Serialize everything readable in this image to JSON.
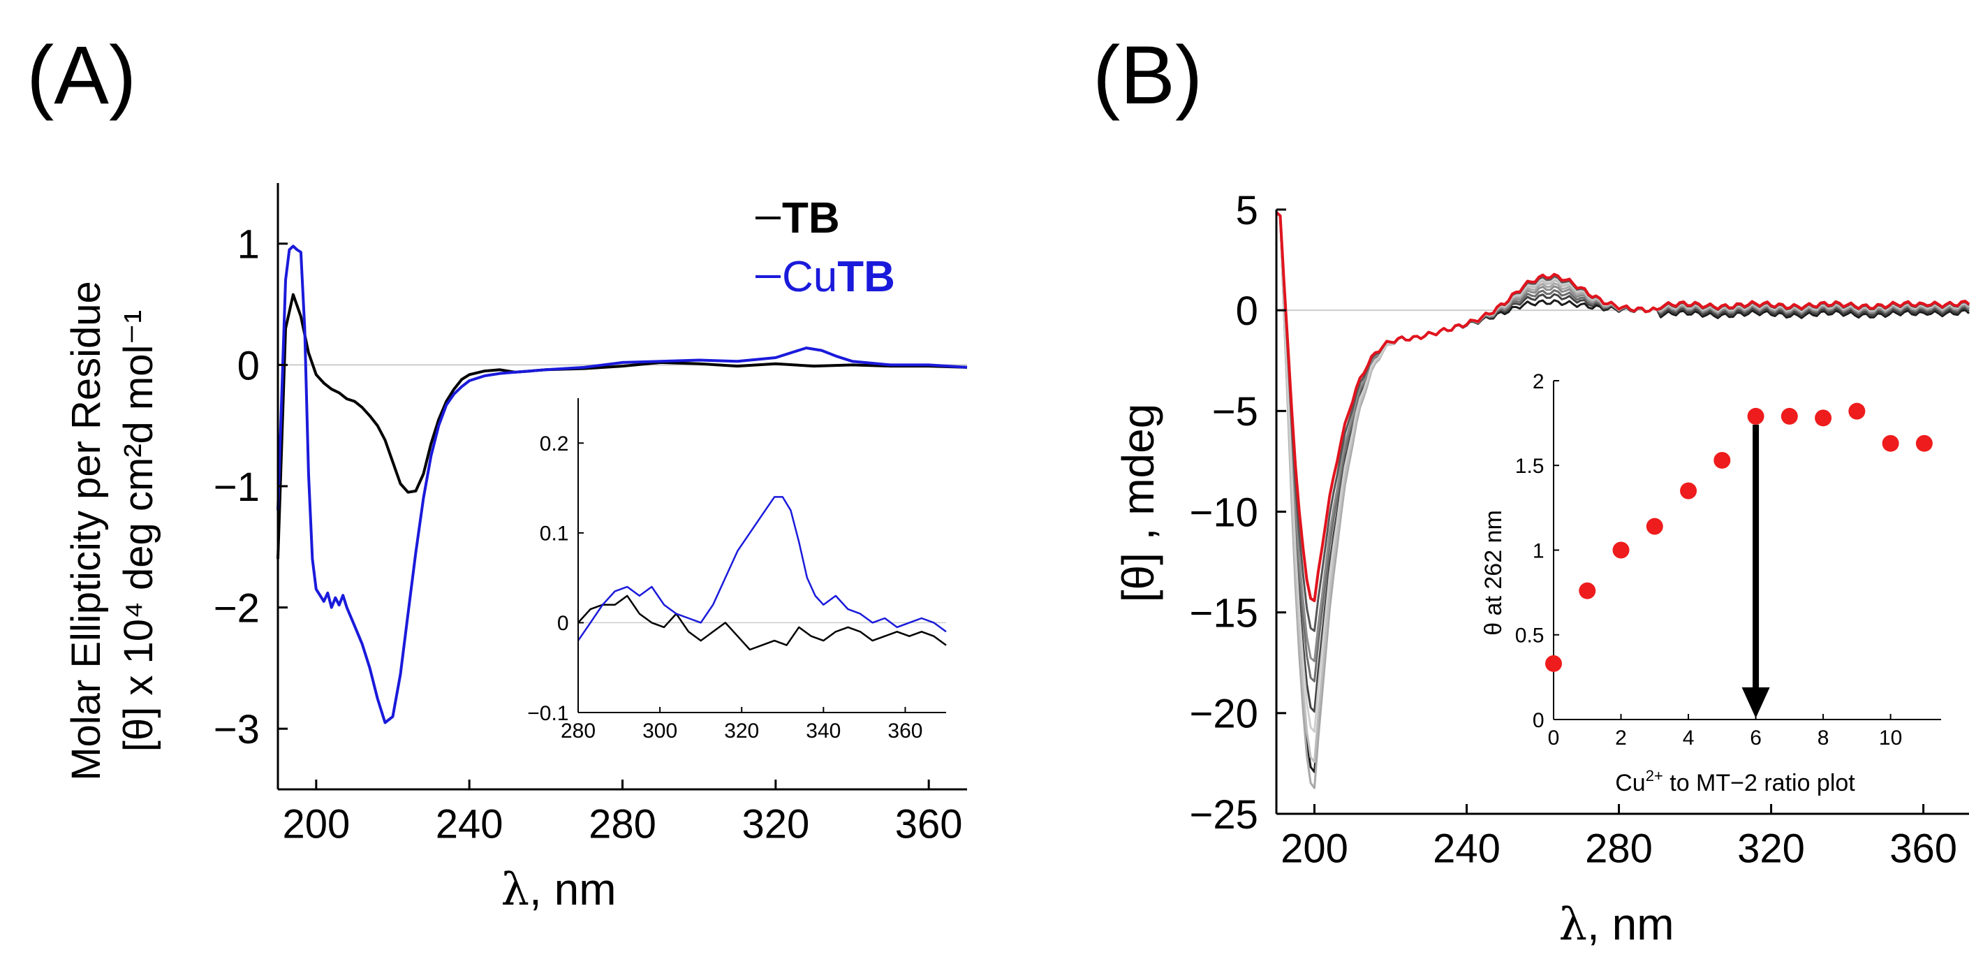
{
  "panels": {
    "a_label": "(A)",
    "b_label": "(B)"
  },
  "chart_data": [
    {
      "panel": "A",
      "type": "line",
      "xlabel_symbol": "λ",
      "xlabel_rest": ", nm",
      "ylabel_line1": "Molar Ellipticity per Residue",
      "ylabel_line2": "[θ] x 10⁴ deg cm²d mol⁻¹",
      "xlim": [
        190,
        370
      ],
      "ylim": [
        -3.5,
        1.5
      ],
      "xticks": [
        "200",
        "240",
        "280",
        "320",
        "360"
      ],
      "yticks": [
        "1",
        "0",
        "−1",
        "−2",
        "−3"
      ],
      "colors": {
        "TB": "#000000",
        "CuTB": "#1a1adb",
        "zero_line": "#cccccc"
      },
      "legend": [
        {
          "prefix": "",
          "bold": "TB",
          "color": "#000000"
        },
        {
          "prefix": "Cu",
          "bold": "TB",
          "color": "#1a1adb"
        }
      ],
      "series": [
        {
          "name": "TB",
          "x": [
            190,
            192,
            194,
            196,
            198,
            200,
            202,
            204,
            206,
            208,
            210,
            212,
            214,
            216,
            218,
            220,
            222,
            224,
            226,
            228,
            230,
            232,
            234,
            236,
            238,
            240,
            244,
            248,
            252,
            256,
            260,
            270,
            280,
            290,
            300,
            310,
            320,
            330,
            340,
            350,
            360,
            370
          ],
          "y": [
            -1.6,
            0.3,
            0.58,
            0.4,
            0.1,
            -0.08,
            -0.15,
            -0.2,
            -0.23,
            -0.28,
            -0.3,
            -0.35,
            -0.42,
            -0.5,
            -0.62,
            -0.8,
            -0.98,
            -1.05,
            -1.04,
            -0.9,
            -0.65,
            -0.45,
            -0.3,
            -0.2,
            -0.12,
            -0.08,
            -0.05,
            -0.04,
            -0.06,
            -0.05,
            -0.04,
            -0.03,
            -0.01,
            0.02,
            0.01,
            -0.01,
            0.01,
            -0.01,
            0.0,
            -0.01,
            -0.01,
            -0.02
          ]
        },
        {
          "name": "CuTB",
          "x": [
            190,
            192,
            193,
            194,
            195,
            196,
            197,
            198,
            199,
            200,
            201,
            202,
            203,
            204,
            205,
            206,
            207,
            208,
            210,
            212,
            214,
            216,
            218,
            220,
            222,
            224,
            226,
            228,
            230,
            232,
            234,
            236,
            238,
            240,
            244,
            248,
            252,
            256,
            260,
            270,
            280,
            290,
            300,
            310,
            320,
            324,
            328,
            332,
            336,
            340,
            350,
            360,
            370
          ],
          "y": [
            -1.2,
            0.7,
            0.95,
            0.98,
            0.95,
            0.93,
            0.3,
            -0.9,
            -1.6,
            -1.85,
            -1.9,
            -1.95,
            -1.88,
            -2.0,
            -1.92,
            -1.98,
            -1.9,
            -2.0,
            -2.15,
            -2.3,
            -2.5,
            -2.75,
            -2.95,
            -2.9,
            -2.55,
            -2.05,
            -1.55,
            -1.1,
            -0.75,
            -0.5,
            -0.33,
            -0.24,
            -0.18,
            -0.13,
            -0.09,
            -0.07,
            -0.06,
            -0.05,
            -0.04,
            -0.02,
            0.02,
            0.03,
            0.04,
            0.03,
            0.06,
            0.1,
            0.14,
            0.12,
            0.07,
            0.03,
            0.0,
            0.0,
            -0.02
          ]
        }
      ],
      "inset": {
        "xlim": [
          280,
          370
        ],
        "ylim": [
          -0.1,
          0.25
        ],
        "xticks": [
          "280",
          "300",
          "320",
          "340",
          "360"
        ],
        "yticks": [
          "0.2",
          "0.1",
          "0",
          "−0.1"
        ],
        "series": [
          {
            "name": "TB",
            "x": [
              280,
              283,
              286,
              289,
              292,
              295,
              298,
              301,
              304,
              307,
              310,
              313,
              316,
              319,
              322,
              325,
              328,
              331,
              334,
              337,
              340,
              343,
              346,
              349,
              352,
              355,
              358,
              361,
              364,
              367,
              370
            ],
            "y": [
              0.0,
              0.015,
              0.02,
              0.02,
              0.03,
              0.01,
              0.0,
              -0.005,
              0.01,
              -0.01,
              -0.02,
              -0.01,
              0.0,
              -0.015,
              -0.03,
              -0.025,
              -0.02,
              -0.025,
              -0.005,
              -0.015,
              -0.02,
              -0.01,
              -0.005,
              -0.01,
              -0.02,
              -0.015,
              -0.01,
              -0.015,
              -0.01,
              -0.015,
              -0.025
            ]
          },
          {
            "name": "CuTB",
            "x": [
              280,
              283,
              286,
              289,
              292,
              295,
              298,
              301,
              304,
              307,
              310,
              313,
              316,
              319,
              322,
              325,
              328,
              330,
              332,
              334,
              336,
              338,
              340,
              343,
              346,
              349,
              352,
              355,
              358,
              361,
              364,
              367,
              370
            ],
            "y": [
              -0.02,
              0.0,
              0.02,
              0.035,
              0.04,
              0.03,
              0.04,
              0.02,
              0.01,
              0.005,
              0.0,
              0.02,
              0.05,
              0.08,
              0.1,
              0.12,
              0.14,
              0.14,
              0.125,
              0.09,
              0.05,
              0.03,
              0.02,
              0.03,
              0.015,
              0.01,
              0.0,
              0.005,
              -0.005,
              0.0,
              0.005,
              0.0,
              -0.01
            ]
          }
        ]
      }
    },
    {
      "panel": "B",
      "type": "line",
      "xlabel_symbol": "λ",
      "xlabel_rest": ", nm",
      "ylabel": "[θ] , mdeg",
      "xlim": [
        190,
        372
      ],
      "ylim": [
        -25,
        5
      ],
      "xticks": [
        "200",
        "240",
        "280",
        "320",
        "360"
      ],
      "yticks": [
        "5",
        "0",
        "−5",
        "−10",
        "−15",
        "−20",
        "−25"
      ],
      "colors": {
        "final": "#e0141e",
        "initial": "#1a1a1a",
        "zero_line": "#cccccc"
      },
      "series": [
        {
          "name": "s1",
          "color": "#1a1a1a",
          "min": -23.0,
          "plateau": -0.2,
          "hump": 0.4
        },
        {
          "name": "s2",
          "color": "#444444",
          "min": -20.0,
          "plateau": -0.1,
          "hump": 0.7
        },
        {
          "name": "s3",
          "color": "#6e6e6e",
          "min": -18.5,
          "plateau": 0.0,
          "hump": 0.9
        },
        {
          "name": "s4",
          "color": "#8c8c8c",
          "min": -17.5,
          "plateau": 0.05,
          "hump": 1.1
        },
        {
          "name": "s5",
          "color": "#a8a8a8",
          "min": -23.8,
          "plateau": 0.1,
          "hump": 1.25
        },
        {
          "name": "s6",
          "color": "#bdbdbd",
          "min": -22.5,
          "plateau": 0.15,
          "hump": 1.4
        },
        {
          "name": "s7",
          "color": "#cfcfcf",
          "min": -21.0,
          "plateau": 0.15,
          "hump": 1.5
        },
        {
          "name": "s8",
          "color": "#555555",
          "min": -16.0,
          "plateau": 0.2,
          "hump": 1.6
        },
        {
          "name": "s9",
          "color": "#e0141e",
          "min": -14.5,
          "plateau": 0.25,
          "hump": 1.7
        }
      ],
      "inset": {
        "type": "scatter",
        "xlabel_pre": "Cu",
        "xlabel_sup": "2+",
        "xlabel_post": " to MT−2 ratio plot",
        "ylabel": "θ at 262 nm",
        "xlim": [
          0,
          11.5
        ],
        "ylim": [
          0,
          2
        ],
        "xticks": [
          "0",
          "2",
          "4",
          "6",
          "8",
          "10"
        ],
        "yticks": [
          "0",
          "0.5",
          "1",
          "1.5",
          "2"
        ],
        "point_color": "#ee1c1c",
        "arrow_x": 6,
        "x": [
          0,
          1,
          2,
          3,
          4,
          5,
          6,
          7,
          8,
          9,
          10,
          11
        ],
        "y": [
          0.33,
          0.76,
          1.0,
          1.14,
          1.35,
          1.53,
          1.79,
          1.79,
          1.78,
          1.82,
          1.63,
          1.63
        ]
      }
    }
  ]
}
